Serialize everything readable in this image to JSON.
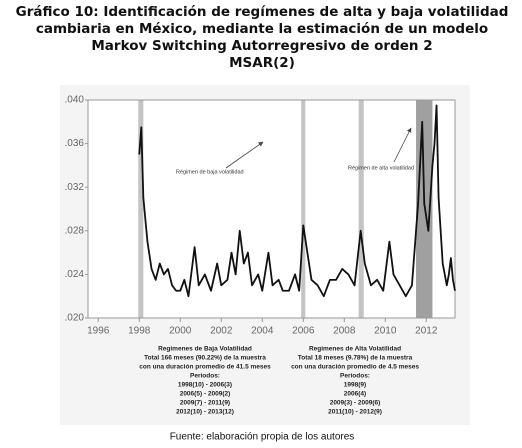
{
  "chart_data": {
    "type": "line",
    "title": [
      "Gráfico 10: Identificación de regímenes de alta y baja volatilidad",
      "cambiaria en México, mediante la estimación de un modelo",
      "Markov Switching Autorregresivo de orden 2",
      "MSAR(2)"
    ],
    "x": [
      1998.0,
      1998.1,
      1998.2,
      1998.4,
      1998.6,
      1998.8,
      1999.0,
      1999.2,
      1999.4,
      1999.6,
      1999.8,
      2000.0,
      2000.2,
      2000.4,
      2000.7,
      2000.9,
      2001.2,
      2001.5,
      2001.8,
      2002.0,
      2002.3,
      2002.5,
      2002.7,
      2002.9,
      2003.1,
      2003.3,
      2003.5,
      2003.8,
      2004.0,
      2004.3,
      2004.5,
      2004.8,
      2005.0,
      2005.3,
      2005.6,
      2005.8,
      2006.0,
      2006.2,
      2006.4,
      2006.7,
      2007.0,
      2007.3,
      2007.6,
      2007.9,
      2008.2,
      2008.5,
      2008.8,
      2009.0,
      2009.3,
      2009.6,
      2009.9,
      2010.2,
      2010.4,
      2010.7,
      2011.0,
      2011.3,
      2011.6,
      2011.8,
      2011.9,
      2012.1,
      2012.3,
      2012.4,
      2012.5,
      2012.6,
      2012.8,
      2013.0,
      2013.1,
      2013.2,
      2013.3,
      2013.4
    ],
    "series": [
      {
        "color": "#111111",
        "values": [
          0.035,
          0.0375,
          0.031,
          0.027,
          0.0245,
          0.0235,
          0.025,
          0.024,
          0.0245,
          0.023,
          0.0225,
          0.0225,
          0.0235,
          0.022,
          0.0265,
          0.023,
          0.024,
          0.0225,
          0.025,
          0.023,
          0.0235,
          0.026,
          0.024,
          0.028,
          0.025,
          0.026,
          0.023,
          0.024,
          0.0225,
          0.026,
          0.023,
          0.0235,
          0.0225,
          0.0225,
          0.024,
          0.0225,
          0.0285,
          0.026,
          0.0235,
          0.023,
          0.022,
          0.0235,
          0.0235,
          0.0245,
          0.024,
          0.023,
          0.028,
          0.025,
          0.023,
          0.0235,
          0.0225,
          0.027,
          0.024,
          0.023,
          0.022,
          0.023,
          0.0305,
          0.038,
          0.0305,
          0.028,
          0.034,
          0.036,
          0.0395,
          0.031,
          0.025,
          0.023,
          0.024,
          0.0255,
          0.0235,
          0.0225
        ]
      }
    ],
    "bands": [
      {
        "from": 1997.95,
        "to": 1998.2,
        "color": "#c4c4c4"
      },
      {
        "from": 2005.9,
        "to": 2006.1,
        "color": "#c4c4c4"
      },
      {
        "from": 2008.7,
        "to": 2008.95,
        "color": "#c4c4c4"
      },
      {
        "from": 2011.5,
        "to": 2012.3,
        "color": "#a0a0a0"
      }
    ],
    "xlim": [
      1995.5,
      2013.4
    ],
    "xticks": [
      1996,
      1998,
      2000,
      2002,
      2004,
      2006,
      2008,
      2010,
      2012
    ],
    "ylim": [
      0.02,
      0.04
    ],
    "yticks": [
      {
        "value": 0.02,
        "label": ".020"
      },
      {
        "value": 0.024,
        "label": ".024"
      },
      {
        "value": 0.028,
        "label": ".028"
      },
      {
        "value": 0.032,
        "label": ".032"
      },
      {
        "value": 0.036,
        "label": ".036"
      },
      {
        "value": 0.04,
        "label": ".040"
      }
    ],
    "annotations": [
      "Régimen de baja volatilidad",
      "Régimen de alta volatilidad"
    ]
  },
  "regime_table": [
    [
      "Regimenes de Baja Volatilidad",
      "Total 166 meses (90.22%) de la muestra",
      "con una duración promedio de 41.5 meses",
      "Periodos:",
      "1998(10) - 2006(3)",
      "2006(5) - 2009(2)",
      "2009(7) - 2011(9)",
      "2012(10) - 2013(12)"
    ],
    [
      "Regimenes de Alta Volatilidad",
      "Total 18 meses (9.78%) de la muestra",
      "con una duración promedio de 4.5 meses",
      "Periodos:",
      "1998(9)",
      "2006(4)",
      "2009(3) - 2009(6)",
      "2011(10) - 2012(9)"
    ]
  ],
  "source": "Fuente: elaboración propia de los autores"
}
